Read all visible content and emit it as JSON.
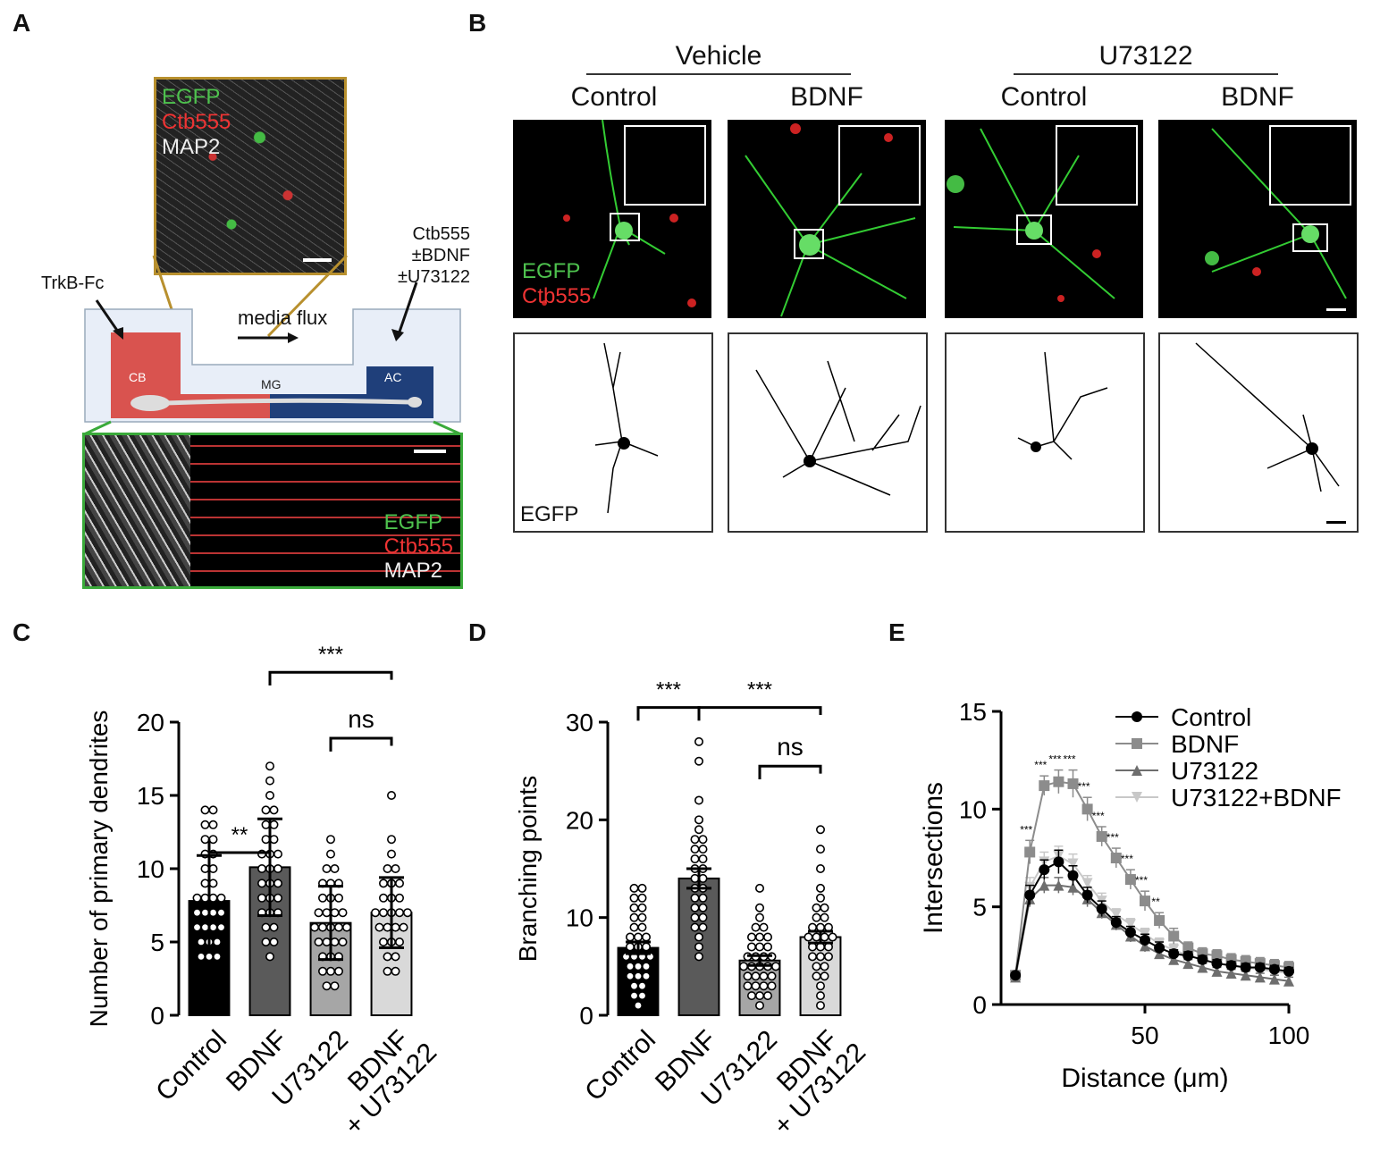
{
  "panels": {
    "A": {
      "label": "A",
      "top_legend": [
        "EGFP",
        "Ctb555",
        "MAP2"
      ],
      "bottom_legend": [
        "EGFP",
        "Ctb555",
        "MAP2"
      ],
      "left_annotation": "TrkB-Fc",
      "right_annotation": [
        "Ctb555",
        "±BDNF",
        "±U73122"
      ],
      "flow_label": "media flux",
      "compartments": [
        "CB",
        "MG",
        "AC"
      ],
      "colors": {
        "cb": "#d9534f",
        "ac": "#1f3f7a",
        "top_frame": "#b8902e",
        "bottom_frame": "#3aaa3a",
        "device_bg": "#e8eef8"
      }
    },
    "B": {
      "label": "B",
      "groups": [
        {
          "title": "Vehicle",
          "conditions": [
            "Control",
            "BDNF"
          ]
        },
        {
          "title": "U73122",
          "conditions": [
            "Control",
            "BDNF"
          ]
        }
      ],
      "image_legend": [
        "EGFP",
        "Ctb555"
      ],
      "trace_label": "EGFP"
    },
    "C": {
      "label": "C"
    },
    "D": {
      "label": "D"
    },
    "E": {
      "label": "E"
    }
  },
  "chart_data": [
    {
      "panel": "C",
      "type": "bar",
      "categories": [
        "Control",
        "BDNF",
        "U73122",
        "BDNF\n+ U73122"
      ],
      "category_lines": [
        [
          "Control"
        ],
        [
          "BDNF"
        ],
        [
          "U73122"
        ],
        [
          "BDNF",
          "+ U73122"
        ]
      ],
      "values": [
        7.8,
        10.1,
        6.3,
        7.0
      ],
      "errors": [
        3.1,
        3.3,
        2.5,
        2.4
      ],
      "colors": [
        "#000000",
        "#5a5a5a",
        "#a6a6a6",
        "#d9d9d9"
      ],
      "ylabel": "Number of primary dendrites",
      "ylim": [
        0,
        20
      ],
      "yticks": [
        0,
        5,
        10,
        15,
        20
      ],
      "points": [
        [
          4,
          4,
          4,
          5,
          5,
          5,
          6,
          6,
          6,
          6,
          7,
          7,
          7,
          7,
          8,
          8,
          8,
          8,
          9,
          9,
          10,
          10,
          11,
          11,
          12,
          12,
          13,
          13,
          14,
          14
        ],
        [
          4,
          5,
          5,
          6,
          6,
          7,
          7,
          7,
          8,
          8,
          8,
          9,
          9,
          9,
          10,
          10,
          10,
          11,
          11,
          11,
          12,
          12,
          13,
          13,
          14,
          14,
          15,
          16,
          17
        ],
        [
          2,
          2,
          3,
          3,
          3,
          4,
          4,
          4,
          5,
          5,
          5,
          5,
          6,
          6,
          6,
          6,
          6,
          7,
          7,
          7,
          7,
          8,
          8,
          8,
          9,
          9,
          9,
          10,
          10,
          11,
          12
        ],
        [
          3,
          3,
          4,
          4,
          5,
          5,
          5,
          6,
          6,
          6,
          6,
          7,
          7,
          7,
          7,
          7,
          8,
          8,
          8,
          9,
          9,
          9,
          10,
          10,
          11,
          12,
          15
        ]
      ],
      "significance": [
        {
          "from": 0,
          "to": 1,
          "label": "**",
          "y": 10.1
        },
        {
          "from": 1,
          "to": 3,
          "label": "***",
          "y": 22.4
        },
        {
          "from": 2,
          "to": 3,
          "label": "ns",
          "y": 17.9
        }
      ]
    },
    {
      "panel": "D",
      "type": "bar",
      "categories": [
        "Control",
        "BDNF",
        "U73122",
        "BDNF\n+ U73122"
      ],
      "category_lines": [
        [
          "Control"
        ],
        [
          "BDNF"
        ],
        [
          "U73122"
        ],
        [
          "BDNF",
          "+ U73122"
        ]
      ],
      "values": [
        6.9,
        14.0,
        5.6,
        8.0
      ],
      "errors": [
        0.6,
        1.0,
        0.5,
        0.6
      ],
      "colors": [
        "#000000",
        "#5a5a5a",
        "#a6a6a6",
        "#d9d9d9"
      ],
      "ylabel": "Branching points",
      "ylim": [
        0,
        30
      ],
      "yticks": [
        0,
        10,
        20,
        30
      ],
      "points": [
        [
          1,
          2,
          2,
          3,
          3,
          4,
          4,
          4,
          5,
          5,
          5,
          6,
          6,
          6,
          6,
          7,
          7,
          7,
          8,
          8,
          8,
          9,
          9,
          10,
          10,
          11,
          11,
          12,
          12,
          13,
          13
        ],
        [
          6,
          7,
          8,
          9,
          9,
          10,
          10,
          11,
          11,
          12,
          12,
          13,
          13,
          14,
          14,
          15,
          15,
          16,
          16,
          17,
          17,
          18,
          18,
          19,
          20,
          22,
          26,
          28
        ],
        [
          1,
          2,
          2,
          2,
          3,
          3,
          3,
          3,
          4,
          4,
          4,
          4,
          5,
          5,
          5,
          5,
          5,
          6,
          6,
          6,
          6,
          7,
          7,
          7,
          8,
          8,
          8,
          9,
          9,
          10,
          11,
          13
        ],
        [
          1,
          2,
          3,
          4,
          4,
          5,
          5,
          6,
          6,
          6,
          7,
          7,
          7,
          8,
          8,
          8,
          8,
          9,
          9,
          9,
          10,
          10,
          11,
          11,
          12,
          13,
          15,
          17,
          19
        ]
      ],
      "significance": [
        {
          "from": 0,
          "to": 1,
          "label": "***",
          "y": 30.0
        },
        {
          "from": 1,
          "to": 3,
          "label": "***",
          "y": 30.0
        },
        {
          "from": 2,
          "to": 3,
          "label": "ns",
          "y": 24.0
        }
      ]
    },
    {
      "panel": "E",
      "type": "line",
      "x": [
        5,
        10,
        15,
        20,
        25,
        30,
        35,
        40,
        45,
        50,
        55,
        60,
        65,
        70,
        75,
        80,
        85,
        90,
        95,
        100
      ],
      "xlabel": "Distance (μm)",
      "ylabel": "Intersections",
      "xlim": [
        0,
        100
      ],
      "ylim": [
        0,
        15
      ],
      "xticks": [
        50,
        100
      ],
      "yticks": [
        0,
        5,
        10,
        15
      ],
      "series": [
        {
          "name": "Control",
          "color": "#000000",
          "marker": "circle",
          "values": [
            1.5,
            5.6,
            6.9,
            7.3,
            6.6,
            5.6,
            4.9,
            4.2,
            3.7,
            3.3,
            2.9,
            2.6,
            2.5,
            2.3,
            2.1,
            2.0,
            1.9,
            1.9,
            1.8,
            1.7
          ],
          "errors": [
            0.1,
            0.5,
            0.5,
            0.6,
            0.5,
            0.4,
            0.4,
            0.3,
            0.3,
            0.3,
            0.3,
            0.2,
            0.2,
            0.2,
            0.2,
            0.2,
            0.2,
            0.2,
            0.2,
            0.2
          ]
        },
        {
          "name": "BDNF",
          "color": "#8c8c8c",
          "marker": "square",
          "values": [
            1.5,
            7.8,
            11.2,
            11.4,
            11.3,
            10.0,
            8.6,
            7.5,
            6.4,
            5.3,
            4.3,
            3.5,
            2.9,
            2.6,
            2.5,
            2.3,
            2.2,
            2.1,
            2.0,
            1.9
          ],
          "errors": [
            0.1,
            0.6,
            0.5,
            0.6,
            0.7,
            0.6,
            0.5,
            0.5,
            0.5,
            0.5,
            0.4,
            0.4,
            0.3,
            0.3,
            0.3,
            0.3,
            0.3,
            0.3,
            0.3,
            0.3
          ]
        },
        {
          "name": "U73122",
          "color": "#6e6e6e",
          "marker": "triangle",
          "values": [
            1.4,
            5.4,
            6.1,
            6.1,
            6.0,
            5.4,
            4.7,
            4.1,
            3.5,
            3.0,
            2.6,
            2.3,
            2.1,
            1.9,
            1.7,
            1.6,
            1.5,
            1.4,
            1.3,
            1.2
          ],
          "errors": [
            0.1,
            0.4,
            0.4,
            0.4,
            0.4,
            0.4,
            0.3,
            0.3,
            0.3,
            0.3,
            0.2,
            0.2,
            0.2,
            0.2,
            0.2,
            0.2,
            0.2,
            0.2,
            0.2,
            0.2
          ]
        },
        {
          "name": "U73122+BDNF",
          "color": "#c8c8c8",
          "marker": "triangle-down",
          "values": [
            1.4,
            6.0,
            7.3,
            7.6,
            7.2,
            6.2,
            5.3,
            4.6,
            4.1,
            3.6,
            3.1,
            2.8,
            2.5,
            2.3,
            2.1,
            2.0,
            1.9,
            1.8,
            1.7,
            1.6
          ],
          "errors": [
            0.1,
            0.5,
            0.5,
            0.5,
            0.5,
            0.4,
            0.4,
            0.3,
            0.3,
            0.3,
            0.3,
            0.3,
            0.2,
            0.2,
            0.2,
            0.2,
            0.2,
            0.2,
            0.2,
            0.2
          ]
        }
      ],
      "annotations": [
        {
          "x": 10,
          "label": "***"
        },
        {
          "x": 15,
          "label": "***"
        },
        {
          "x": 20,
          "label": "***"
        },
        {
          "x": 25,
          "label": "***"
        },
        {
          "x": 30,
          "label": "***"
        },
        {
          "x": 35,
          "label": "***"
        },
        {
          "x": 40,
          "label": "***"
        },
        {
          "x": 45,
          "label": "***"
        },
        {
          "x": 50,
          "label": "***"
        },
        {
          "x": 55,
          "label": "**"
        }
      ]
    }
  ]
}
